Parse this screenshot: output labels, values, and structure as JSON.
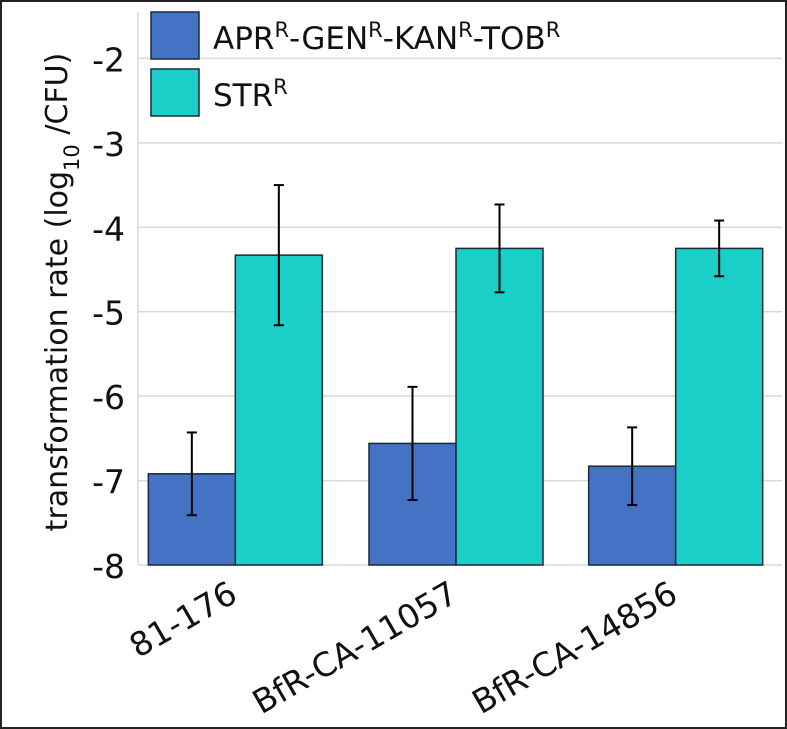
{
  "chart_data": {
    "type": "bar",
    "title": "",
    "xlabel": "",
    "ylabel": "transformation rate (log",
    "ylabel_sub": "10",
    "ylabel_tail": " /CFU)",
    "ylim": [
      -8,
      -1.45
    ],
    "yticks": [
      -8,
      -7,
      -6,
      -5,
      -4,
      -3,
      -2
    ],
    "grid": true,
    "legend_placement": "top-left",
    "categories": [
      "81-176",
      "BfR-CA-11057",
      "BfR-CA-14856"
    ],
    "series": [
      {
        "name": "APR^R-GEN^R-KAN^R-TOB^R",
        "legend_parts": [
          [
            "APR",
            "R"
          ],
          [
            "-GEN",
            "R"
          ],
          [
            "-KAN",
            "R"
          ],
          [
            "-TOB",
            "R"
          ]
        ],
        "color": "#4472C4",
        "values": [
          -6.92,
          -6.56,
          -6.83
        ],
        "errors": [
          0.49,
          0.67,
          0.46
        ]
      },
      {
        "name": "STR^R",
        "legend_parts": [
          [
            "STR",
            "R"
          ]
        ],
        "color": "#1BCFC9",
        "values": [
          -4.33,
          -4.25,
          -4.25
        ],
        "errors": [
          0.83,
          0.52,
          0.33
        ]
      }
    ]
  }
}
